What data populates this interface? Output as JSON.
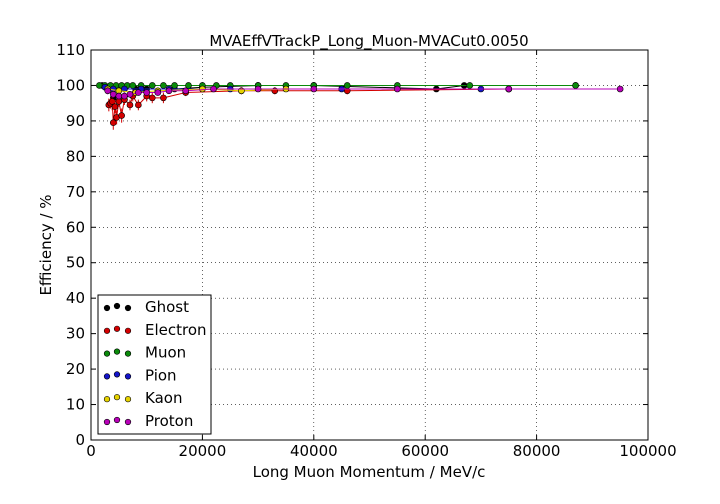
{
  "chart_data": {
    "type": "scatter",
    "title": "MVAEffVTrackP_Long_Muon-MVACut0.0050",
    "xlabel": "Long Muon Momentum / MeV/c",
    "ylabel": "Efficiency / %",
    "xlim": [
      0,
      100000
    ],
    "ylim": [
      0,
      110
    ],
    "x_ticks": [
      0,
      20000,
      40000,
      60000,
      80000,
      100000
    ],
    "y_ticks": [
      0,
      10,
      20,
      30,
      40,
      50,
      60,
      70,
      80,
      90,
      100,
      110
    ],
    "grid": true,
    "legend_position": "lower-left",
    "series": [
      {
        "name": "Ghost",
        "color": "#000000",
        "x": [
          2000,
          3000,
          4000,
          5000,
          6000,
          8000,
          10000,
          15000,
          20000,
          30000,
          40000,
          62000,
          67000,
          87000
        ],
        "y": [
          100,
          99.5,
          96.5,
          95.5,
          96,
          99,
          99,
          99,
          99.5,
          100,
          100,
          99,
          100,
          100
        ],
        "err": [
          0.3,
          0.6,
          1.2,
          1.0,
          1.0,
          0.8,
          0.5,
          0.5,
          0.5,
          0.3,
          0.3,
          0.3,
          0.3,
          0.3
        ]
      },
      {
        "name": "Electron",
        "color": "#d40000",
        "x": [
          3200,
          3500,
          3800,
          4000,
          4300,
          4600,
          5000,
          5500,
          6000,
          7000,
          7500,
          8500,
          10000,
          11000,
          13000,
          17000,
          27000,
          33000,
          46000,
          75000
        ],
        "y": [
          94.5,
          95,
          95.5,
          89.5,
          94,
          91,
          95.5,
          91.5,
          96,
          94.5,
          97,
          94.5,
          97,
          96.5,
          96.5,
          98,
          98.5,
          98.5,
          98.5,
          99
        ],
        "err": [
          1.8,
          1.5,
          2.5,
          2.0,
          1.8,
          2.0,
          1.5,
          2.0,
          1.5,
          1.5,
          1.5,
          1.5,
          1.5,
          1.5,
          1.5,
          1.0,
          1.0,
          1.0,
          1.0,
          0.5
        ]
      },
      {
        "name": "Muon",
        "color": "#0a8a0a",
        "x": [
          1500,
          2500,
          3500,
          4500,
          5500,
          6500,
          7500,
          9000,
          11000,
          13000,
          15000,
          17500,
          20000,
          22500,
          25000,
          30000,
          35000,
          40000,
          46000,
          55000,
          68000,
          87000
        ],
        "y": [
          100,
          100,
          100,
          100,
          100,
          100,
          100,
          100,
          100,
          100,
          100,
          100,
          100,
          100,
          100,
          100,
          100,
          100,
          100,
          100,
          100,
          100
        ],
        "err": [
          0.2,
          0.2,
          0.2,
          0.2,
          0.2,
          0.2,
          0.2,
          0.2,
          0.2,
          0.2,
          0.2,
          0.2,
          0.2,
          0.2,
          0.2,
          0.2,
          0.2,
          0.2,
          0.2,
          0.2,
          0.2,
          0.2
        ]
      },
      {
        "name": "Pion",
        "color": "#1414c8",
        "x": [
          2500,
          4000,
          6000,
          9000,
          14000,
          25000,
          45000,
          70000
        ],
        "y": [
          99.5,
          99,
          99,
          99,
          99,
          99,
          99,
          99
        ],
        "err": [
          0.5,
          0.5,
          0.5,
          0.5,
          0.5,
          0.5,
          0.5,
          0.5
        ]
      },
      {
        "name": "Kaon",
        "color": "#e6d200",
        "x": [
          3000,
          5000,
          8000,
          12000,
          20000,
          27000,
          35000,
          75000
        ],
        "y": [
          99,
          98.5,
          98,
          98.5,
          99,
          98.5,
          99,
          99
        ],
        "err": [
          0.8,
          0.8,
          0.8,
          0.8,
          0.8,
          0.8,
          0.8,
          0.8
        ]
      },
      {
        "name": "Proton",
        "color": "#b800b8",
        "x": [
          3000,
          4000,
          5000,
          6000,
          7000,
          8500,
          10000,
          12000,
          14000,
          17000,
          22000,
          30000,
          40000,
          55000,
          75000,
          95000
        ],
        "y": [
          98.5,
          97.5,
          97,
          97,
          97.5,
          98,
          98,
          98,
          98.5,
          98.5,
          99,
          99,
          99,
          99,
          99,
          99
        ],
        "err": [
          1.0,
          1.0,
          1.0,
          1.0,
          0.8,
          0.8,
          0.8,
          0.6,
          0.6,
          0.6,
          0.5,
          0.5,
          0.5,
          0.5,
          0.5,
          0.5
        ]
      }
    ]
  }
}
